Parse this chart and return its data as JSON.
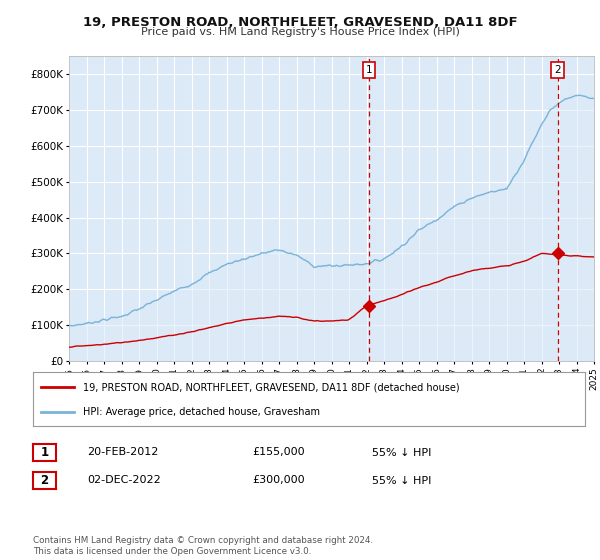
{
  "title": "19, PRESTON ROAD, NORTHFLEET, GRAVESEND, DA11 8DF",
  "subtitle": "Price paid vs. HM Land Registry's House Price Index (HPI)",
  "background_color": "#ffffff",
  "plot_bg_color": "#dce9f7",
  "grid_color": "#ffffff",
  "hpi_line_color": "#7ab3d8",
  "hpi_fill_color": "#dce9f7",
  "price_line_color": "#cc0000",
  "vline_color": "#cc0000",
  "marker_color": "#cc0000",
  "xmin": 1995,
  "xmax": 2025,
  "ymin": 0,
  "ymax": 850000,
  "yticks": [
    0,
    100000,
    200000,
    300000,
    400000,
    500000,
    600000,
    700000,
    800000
  ],
  "ytick_labels": [
    "£0",
    "£100K",
    "£200K",
    "£300K",
    "£400K",
    "£500K",
    "£600K",
    "£700K",
    "£800K"
  ],
  "sale1_x": 2012.13,
  "sale1_y": 155000,
  "sale2_x": 2022.92,
  "sale2_y": 300000,
  "legend_label1": "19, PRESTON ROAD, NORTHFLEET, GRAVESEND, DA11 8DF (detached house)",
  "legend_label2": "HPI: Average price, detached house, Gravesham",
  "table_row1": [
    "1",
    "20-FEB-2012",
    "£155,000",
    "55% ↓ HPI"
  ],
  "table_row2": [
    "2",
    "02-DEC-2022",
    "£300,000",
    "55% ↓ HPI"
  ],
  "footer": "Contains HM Land Registry data © Crown copyright and database right 2024.\nThis data is licensed under the Open Government Licence v3.0.",
  "hpi_anchors_x": [
    1995,
    1996,
    1997,
    1998,
    1999,
    2000,
    2001,
    2002,
    2003,
    2004,
    2005,
    2006,
    2007,
    2008,
    2009,
    2010,
    2011,
    2012,
    2013,
    2014,
    2015,
    2016,
    2017,
    2018,
    2019,
    2020,
    2021,
    2022,
    2022.5,
    2023,
    2023.5,
    2024,
    2025
  ],
  "hpi_anchors_y": [
    98000,
    105000,
    115000,
    125000,
    145000,
    170000,
    195000,
    215000,
    245000,
    270000,
    285000,
    300000,
    310000,
    295000,
    265000,
    265000,
    268000,
    272000,
    285000,
    320000,
    365000,
    395000,
    430000,
    455000,
    470000,
    480000,
    560000,
    660000,
    700000,
    720000,
    730000,
    740000,
    730000
  ],
  "price_anchors_x": [
    1995,
    1996,
    1997,
    1998,
    1999,
    2000,
    2001,
    2002,
    2003,
    2004,
    2005,
    2006,
    2007,
    2008,
    2009,
    2010,
    2011,
    2012,
    2013,
    2014,
    2015,
    2016,
    2017,
    2018,
    2019,
    2020,
    2021,
    2022,
    2023,
    2024,
    2025
  ],
  "price_anchors_y": [
    40000,
    43000,
    47000,
    52000,
    58000,
    65000,
    73000,
    82000,
    93000,
    105000,
    115000,
    120000,
    125000,
    122000,
    112000,
    112000,
    115000,
    155000,
    168000,
    185000,
    205000,
    220000,
    238000,
    252000,
    260000,
    265000,
    278000,
    300000,
    296000,
    293000,
    290000
  ]
}
